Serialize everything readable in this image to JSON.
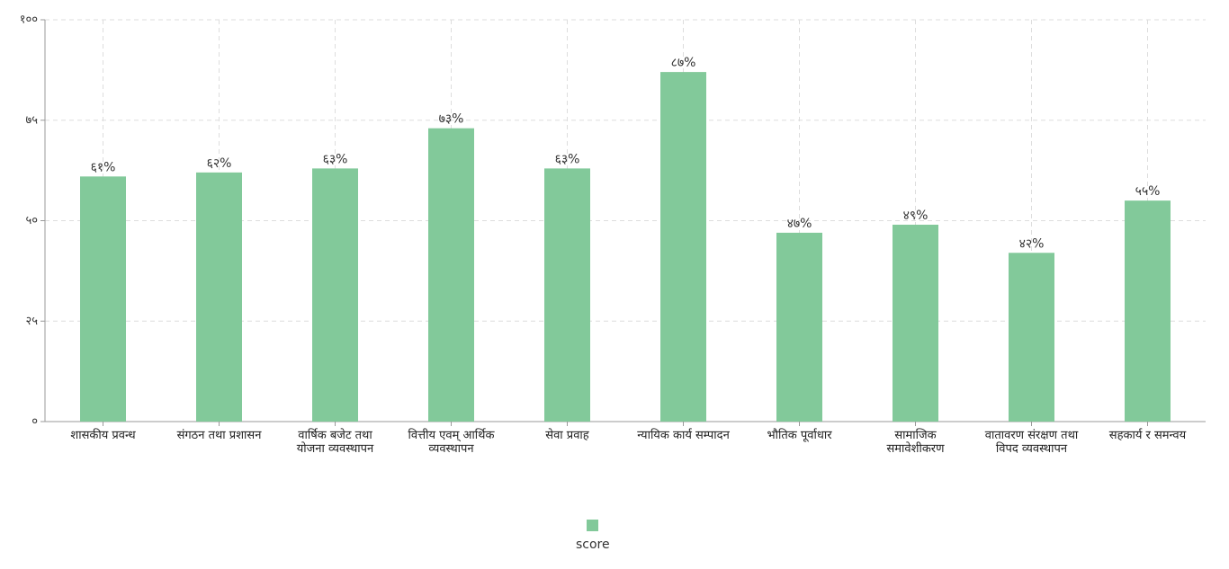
{
  "chart_data": {
    "type": "bar",
    "categories": [
      "शासकीय प्रवन्ध",
      "संगठन तथा प्रशासन",
      "वार्षिक बजेट तथा योजना व्यवस्थापन",
      "वित्तीय एवम् आर्थिक व्यवस्थापन",
      "सेवा प्रवाह",
      "न्यायिक कार्य सम्पादन",
      "भौतिक पूर्वाधार",
      "सामाजिक समावेशीकरण",
      "वातावरण संरक्षण तथा विपद व्यवस्थापन",
      "सहकार्य र समन्वय"
    ],
    "series": [
      {
        "name": "score",
        "color": "#82c99a",
        "values": [
          61,
          62,
          63,
          73,
          63,
          87,
          47,
          49,
          42,
          55
        ],
        "value_labels": [
          "६१%",
          "६२%",
          "६३%",
          "७३%",
          "६३%",
          "८७%",
          "४७%",
          "४९%",
          "४२%",
          "५५%"
        ]
      }
    ],
    "ylim": [
      0,
      100
    ],
    "yticks": [
      {
        "value": 0,
        "label": "०"
      },
      {
        "value": 25,
        "label": "२५"
      },
      {
        "value": 50,
        "label": "५०"
      },
      {
        "value": 75,
        "label": "७५"
      },
      {
        "value": 100,
        "label": "१००"
      }
    ],
    "grid": true,
    "legend": "bottom"
  }
}
